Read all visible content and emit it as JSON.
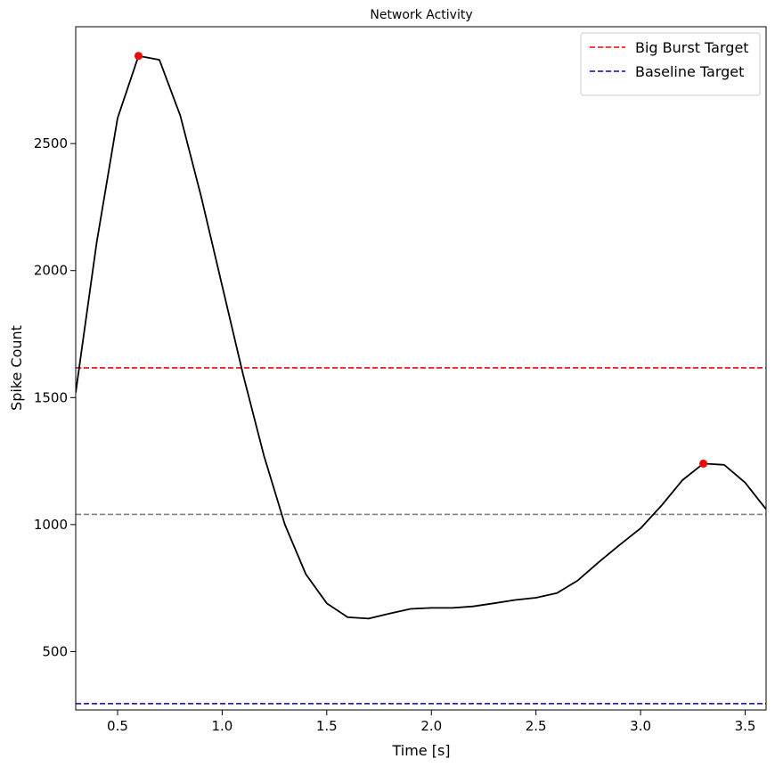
{
  "chart_data": {
    "type": "line",
    "title": "Network Activity",
    "xlabel": "Time [s]",
    "ylabel": "Spike Count",
    "xlim": [
      0.3,
      3.6
    ],
    "ylim": [
      270,
      2960
    ],
    "xticks": [
      0.5,
      1.0,
      1.5,
      2.0,
      2.5,
      3.0,
      3.5
    ],
    "xtick_labels": [
      "0.5",
      "1.0",
      "1.5",
      "2.0",
      "2.5",
      "3.0",
      "3.5"
    ],
    "yticks": [
      500,
      1000,
      1500,
      2000,
      2500
    ],
    "ytick_labels": [
      "500",
      "1000",
      "1500",
      "2000",
      "2500"
    ],
    "grid": false,
    "legend_position": "top-right",
    "series": [
      {
        "color": "#000000",
        "x": [
          0.3,
          0.4,
          0.5,
          0.6,
          0.7,
          0.8,
          0.9,
          1.0,
          1.1,
          1.2,
          1.3,
          1.4,
          1.5,
          1.6,
          1.7,
          1.8,
          1.9,
          2.0,
          2.1,
          2.2,
          2.3,
          2.4,
          2.5,
          2.6,
          2.7,
          2.8,
          2.9,
          3.0,
          3.1,
          3.2,
          3.3,
          3.4,
          3.5,
          3.6
        ],
        "y": [
          1520,
          2110,
          2600,
          2845,
          2830,
          2610,
          2290,
          1940,
          1590,
          1270,
          1000,
          805,
          690,
          635,
          630,
          650,
          668,
          672,
          672,
          678,
          690,
          703,
          712,
          730,
          780,
          852,
          920,
          985,
          1075,
          1175,
          1240,
          1235,
          1165,
          1060
        ]
      }
    ],
    "peaks": [
      {
        "x": 0.6,
        "y": 2845,
        "color": "#ff0000"
      },
      {
        "x": 3.3,
        "y": 1240,
        "color": "#ff0000"
      }
    ],
    "reference_lines": [
      {
        "name": "Big Burst Target",
        "y": 1617,
        "color": "#ff0000",
        "in_legend": true
      },
      {
        "name": "Baseline Target",
        "y": 295,
        "color": "#0000cd",
        "in_legend": true
      },
      {
        "name": "",
        "y": 1040,
        "color": "#808080",
        "in_legend": false
      }
    ]
  }
}
